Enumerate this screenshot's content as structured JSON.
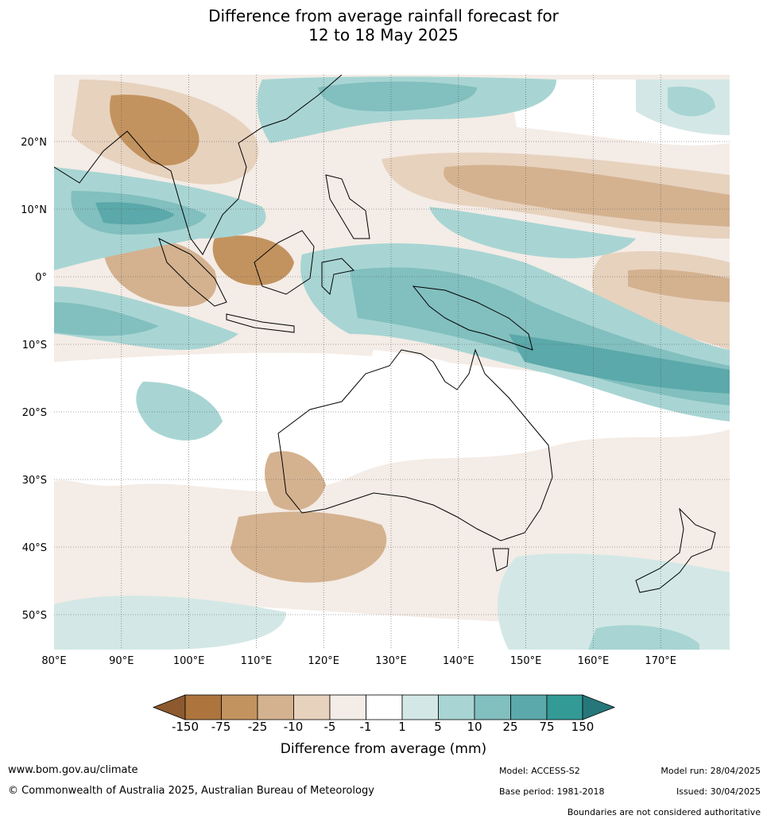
{
  "title_line1": "Difference from average rainfall forecast for",
  "title_line2": "12 to 18 May 2025",
  "map": {
    "lon_labels": [
      "80°E",
      "90°E",
      "100°E",
      "110°E",
      "120°E",
      "130°E",
      "140°E",
      "150°E",
      "160°E",
      "170°E"
    ],
    "lat_labels": [
      "20°N",
      "10°N",
      "0°",
      "10°S",
      "20°S",
      "30°S",
      "40°S",
      "50°S"
    ],
    "extent": {
      "lon_min": 80,
      "lon_max": 180,
      "lat_min": -55,
      "lat_max": 30
    }
  },
  "colorbar": {
    "ticks": [
      "-150",
      "-75",
      "-25",
      "-10",
      "-5",
      "-1",
      "1",
      "5",
      "10",
      "25",
      "75",
      "150"
    ],
    "colors": [
      "#8c5a2e",
      "#ad743e",
      "#c3935f",
      "#d4b290",
      "#e7d2be",
      "#f4ece6",
      "#ffffff",
      "#d3e8e6",
      "#a8d5d3",
      "#82bfbf",
      "#5ba9aa",
      "#339a96",
      "#26777a"
    ],
    "label": "Difference from average (mm)"
  },
  "footer": {
    "website": "www.bom.gov.au/climate",
    "copyright": "© Commonwealth of Australia 2025, Australian Bureau of Meteorology",
    "model": "Model: ACCESS-S2",
    "base_period": "Base period: 1981-2018",
    "model_run": "Model run: 28/04/2025",
    "issued": "Issued: 30/04/2025",
    "disclaimer": "Boundaries are not considered authoritative"
  }
}
